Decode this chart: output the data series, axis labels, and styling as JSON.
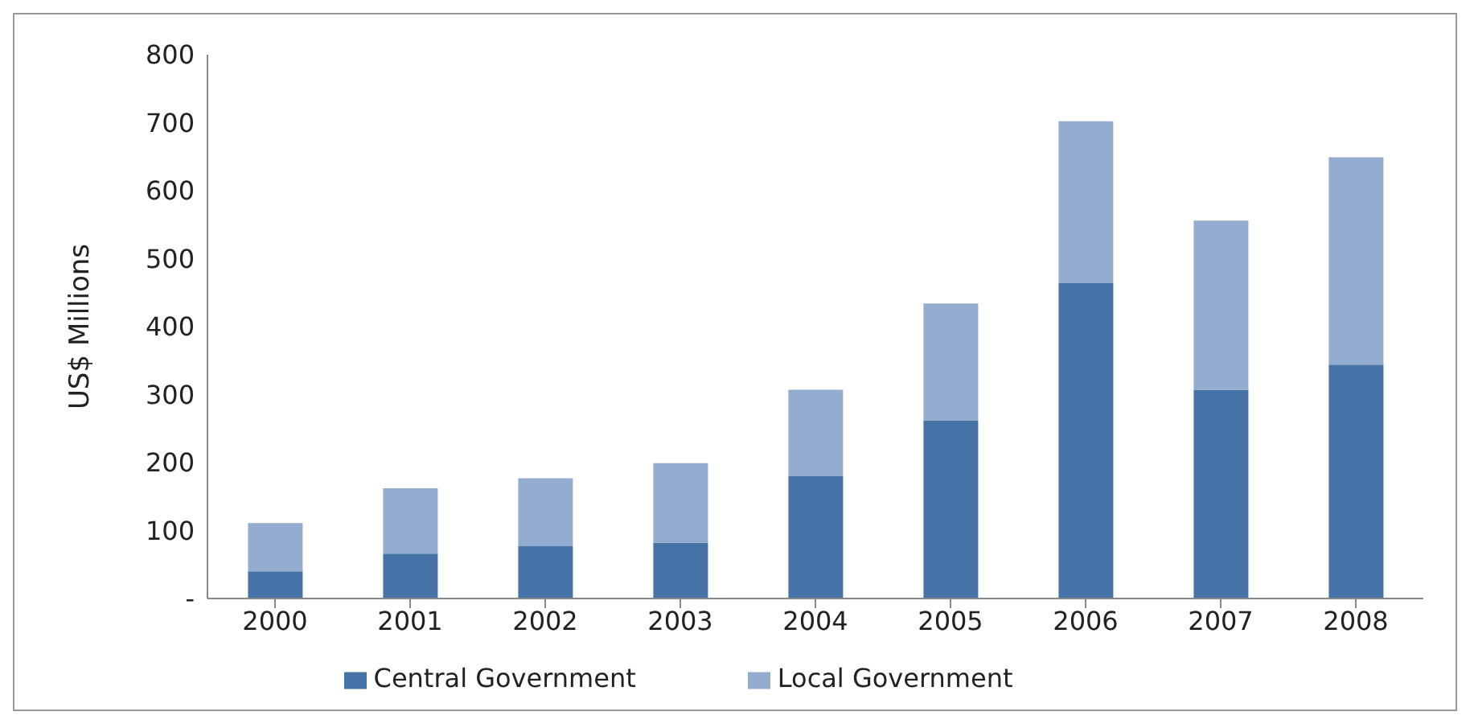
{
  "chart_data": {
    "type": "bar",
    "stacked": true,
    "ylabel": "US$ Millions",
    "categories": [
      "2000",
      "2001",
      "2002",
      "2003",
      "2004",
      "2005",
      "2006",
      "2007",
      "2008"
    ],
    "series": [
      {
        "name": "Central Government",
        "color": "#4572a7",
        "values": [
          40,
          66,
          77,
          82,
          180,
          262,
          464,
          307,
          344
        ]
      },
      {
        "name": "Local Government",
        "color": "#95acd1",
        "values": [
          71,
          96,
          100,
          117,
          127,
          172,
          238,
          249,
          305
        ]
      }
    ],
    "ylim": [
      0,
      800
    ],
    "yticks": [
      {
        "value": 0,
        "label": "-"
      },
      100,
      200,
      300,
      400,
      500,
      600,
      700,
      800
    ],
    "grid": false,
    "legend": "bottom"
  }
}
